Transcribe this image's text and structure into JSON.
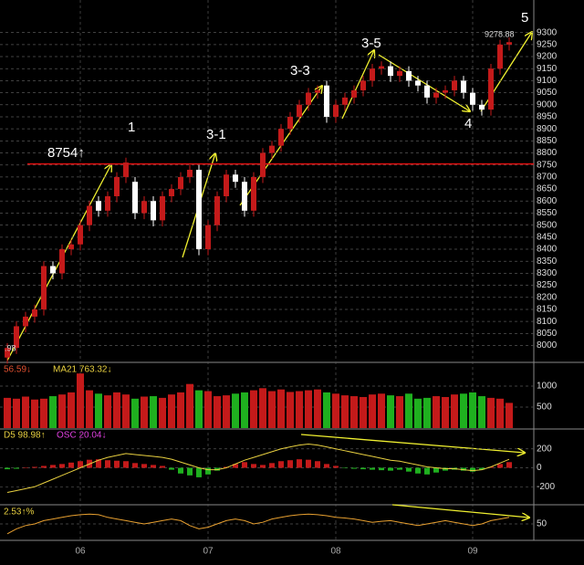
{
  "chart_data": {
    "type": "candlestick",
    "open": [
      7950,
      7990,
      8080,
      8120,
      8150,
      8330,
      8300,
      8400,
      8420,
      8500,
      8600,
      8560,
      8620,
      8700,
      8680,
      8550,
      8600,
      8520,
      8620,
      8650,
      8700,
      8730,
      8400,
      8500,
      8620,
      8710,
      8680,
      8560,
      8700,
      8800,
      8830,
      8900,
      8950,
      9000,
      9050,
      9080,
      8950,
      9000,
      9030,
      9060,
      9100,
      9150,
      9160,
      9120,
      9140,
      9100,
      9080,
      9030,
      9050,
      9060,
      9100,
      9050,
      9000,
      8980,
      9150,
      9250
    ],
    "high": [
      8010,
      8100,
      8140,
      8170,
      8350,
      8350,
      8420,
      8440,
      8520,
      8600,
      8620,
      8640,
      8720,
      8780,
      8700,
      8620,
      8620,
      8640,
      8670,
      8720,
      8750,
      8750,
      8520,
      8640,
      8730,
      8730,
      8700,
      8720,
      8820,
      8850,
      8920,
      8970,
      9020,
      9070,
      9080,
      9100,
      9020,
      9050,
      9080,
      9120,
      9170,
      9180,
      9180,
      9160,
      9160,
      9120,
      9100,
      9070,
      9080,
      9120,
      9120,
      9070,
      9020,
      9170,
      9270,
      9280
    ],
    "low": [
      7925,
      7965,
      8055,
      8095,
      8125,
      8275,
      8275,
      8375,
      8395,
      8475,
      8535,
      8535,
      8595,
      8675,
      8525,
      8525,
      8495,
      8495,
      8595,
      8625,
      8675,
      8375,
      8375,
      8475,
      8595,
      8655,
      8535,
      8535,
      8675,
      8775,
      8805,
      8875,
      8925,
      8975,
      9025,
      8925,
      8925,
      8975,
      9005,
      9035,
      9075,
      9125,
      9095,
      9095,
      9075,
      9055,
      9005,
      9005,
      9025,
      9035,
      9025,
      8975,
      8955,
      8955,
      9125,
      9225
    ],
    "close": [
      7990,
      8080,
      8120,
      8150,
      8330,
      8300,
      8400,
      8420,
      8500,
      8580,
      8560,
      8620,
      8700,
      8760,
      8550,
      8600,
      8520,
      8620,
      8650,
      8700,
      8730,
      8400,
      8500,
      8620,
      8710,
      8680,
      8560,
      8700,
      8800,
      8830,
      8900,
      8950,
      9000,
      9050,
      9060,
      8950,
      9000,
      9030,
      9060,
      9100,
      9150,
      9160,
      9120,
      9140,
      9100,
      9080,
      9030,
      9050,
      9060,
      9100,
      9050,
      9000,
      8980,
      9150,
      9250,
      9260
    ],
    "up_color": "#c41a1a",
    "down_color": "#ffffff",
    "ylim": [
      7930,
      9420
    ],
    "yticks": [
      8000,
      8050,
      8100,
      8150,
      8200,
      8250,
      8300,
      8350,
      8400,
      8450,
      8500,
      8550,
      8600,
      8650,
      8700,
      8750,
      8800,
      8850,
      8900,
      8950,
      9000,
      9050,
      9100,
      9150,
      9200,
      9250,
      9300
    ],
    "ref_line": 8754,
    "ref_color": "#e01010",
    "xlabels": [
      {
        "index": 8,
        "label": "06"
      },
      {
        "index": 22,
        "label": "07"
      },
      {
        "index": 36,
        "label": "08"
      },
      {
        "index": 51,
        "label": "09"
      }
    ],
    "annotations": [
      "1",
      "8754↑",
      "3-1",
      "3-3",
      "3-5",
      "4",
      "5",
      "9278.88",
      ".98"
    ],
    "volume": {
      "header": [
        "56.59↓",
        "MA21 763.32↓"
      ],
      "values": [
        720,
        700,
        750,
        680,
        700,
        760,
        800,
        850,
        1300,
        900,
        820,
        780,
        850,
        800,
        700,
        750,
        760,
        720,
        800,
        850,
        1050,
        900,
        880,
        760,
        780,
        820,
        850,
        900,
        950,
        880,
        920,
        860,
        880,
        900,
        920,
        850,
        820,
        780,
        760,
        740,
        800,
        820,
        780,
        760,
        820,
        700,
        720,
        760,
        740,
        800,
        820,
        850,
        760,
        720,
        700,
        600
      ],
      "up_color": "#c41a1a",
      "down_color": "#1fb01f",
      "ylim": [
        0,
        1500
      ],
      "yticks": [
        500,
        1000
      ]
    },
    "macd": {
      "header": [
        "D5 98.98↑",
        "OSC 20.04↓"
      ],
      "hist": [
        -15,
        -10,
        5,
        10,
        20,
        30,
        40,
        55,
        70,
        85,
        90,
        80,
        75,
        70,
        50,
        40,
        30,
        20,
        -20,
        -60,
        -80,
        -100,
        -70,
        -30,
        10,
        40,
        60,
        40,
        30,
        50,
        70,
        80,
        90,
        85,
        70,
        40,
        20,
        -5,
        -10,
        -15,
        -20,
        -25,
        -30,
        -20,
        -40,
        -60,
        -70,
        -50,
        -30,
        -20,
        -30,
        -40,
        -20,
        10,
        40,
        60
      ],
      "line": [
        -260,
        -240,
        -220,
        -200,
        -160,
        -120,
        -80,
        -40,
        0,
        40,
        80,
        110,
        130,
        150,
        140,
        130,
        120,
        110,
        90,
        60,
        30,
        0,
        -20,
        -20,
        0,
        40,
        80,
        110,
        140,
        170,
        200,
        220,
        240,
        250,
        240,
        220,
        200,
        180,
        160,
        140,
        120,
        100,
        80,
        70,
        50,
        30,
        10,
        0,
        -10,
        -10,
        -20,
        -30,
        -20,
        10,
        50,
        90
      ],
      "pos_color": "#c41a1a",
      "neg_color": "#1fb01f",
      "line_color": "#e8d040",
      "ylim": [
        -380,
        390
      ],
      "yticks": [
        -200,
        0,
        200
      ]
    },
    "osc": {
      "header": [
        "2.53↑%"
      ],
      "line": [
        20,
        35,
        45,
        50,
        60,
        65,
        70,
        75,
        78,
        80,
        78,
        70,
        65,
        60,
        55,
        50,
        55,
        60,
        65,
        60,
        45,
        35,
        40,
        50,
        60,
        65,
        60,
        50,
        55,
        65,
        70,
        75,
        78,
        80,
        78,
        75,
        70,
        68,
        65,
        60,
        55,
        58,
        60,
        55,
        50,
        45,
        50,
        55,
        60,
        55,
        50,
        45,
        50,
        60,
        65,
        70
      ],
      "line_color": "#e8a030",
      "ylim": [
        0,
        100
      ],
      "yticks": [
        50
      ]
    }
  }
}
